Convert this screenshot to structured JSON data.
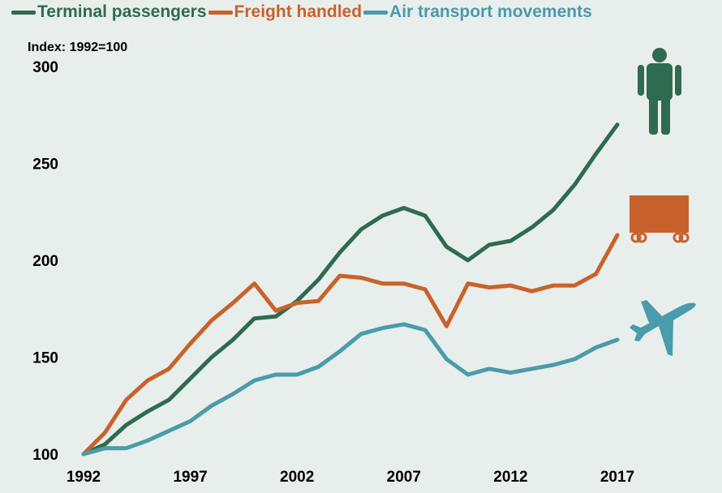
{
  "chart_data": {
    "type": "line",
    "index_label": "Index: 1992=100",
    "x": [
      1992,
      1993,
      1994,
      1995,
      1996,
      1997,
      1998,
      1999,
      2000,
      2001,
      2002,
      2003,
      2004,
      2005,
      2006,
      2007,
      2008,
      2009,
      2010,
      2011,
      2012,
      2013,
      2014,
      2015,
      2016,
      2017
    ],
    "series": [
      {
        "name": "Terminal passengers",
        "color": "#2e6b50",
        "icon": "person-icon",
        "values": [
          100,
          105,
          115,
          122,
          128,
          139,
          150,
          159,
          170,
          171,
          179,
          190,
          204,
          216,
          223,
          227,
          223,
          207,
          200,
          208,
          210,
          217,
          226,
          239,
          255,
          270
        ]
      },
      {
        "name": "Freight handled",
        "color": "#c8622c",
        "icon": "freight-cart-icon",
        "values": [
          100,
          111,
          128,
          138,
          144,
          157,
          169,
          178,
          188,
          174,
          178,
          179,
          192,
          191,
          188,
          188,
          185,
          166,
          188,
          186,
          187,
          184,
          187,
          187,
          193,
          213
        ]
      },
      {
        "name": "Air transport movements",
        "color": "#4a9bab",
        "icon": "airplane-icon",
        "values": [
          100,
          103,
          103,
          107,
          112,
          117,
          125,
          131,
          138,
          141,
          141,
          145,
          153,
          162,
          165,
          167,
          164,
          149,
          141,
          144,
          142,
          144,
          146,
          149,
          155,
          159
        ]
      }
    ],
    "x_ticks": [
      "1992",
      "1997",
      "2002",
      "2007",
      "2012",
      "2017"
    ],
    "y_ticks": [
      "100",
      "150",
      "200",
      "250",
      "300"
    ],
    "ylim": [
      100,
      300
    ],
    "xlim": [
      1992,
      2017
    ],
    "grid": false,
    "legend_position": "top-left"
  }
}
